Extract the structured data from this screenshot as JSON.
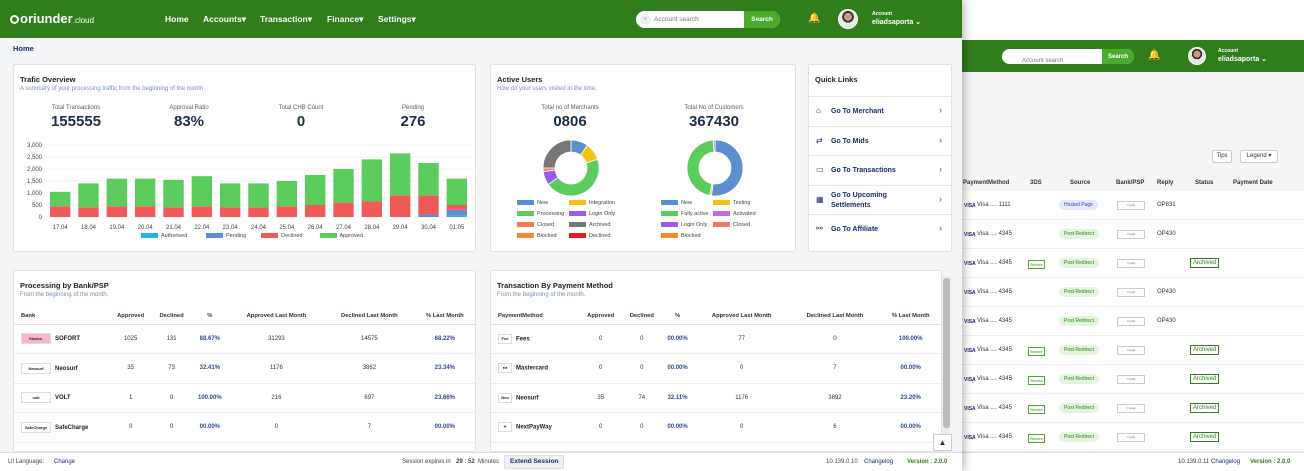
{
  "nav": {
    "logo": "oriunder",
    "logo_suffix": ".cloud",
    "menu": [
      "Home",
      "Accounts▾",
      "Transaction▾",
      "Finance▾",
      "Settings▾"
    ],
    "search_placeholder": "Account search",
    "search_button": "Search",
    "account_label": "Account",
    "username": "eliadsaporta ⌄"
  },
  "breadcrumb": "Home",
  "traffic": {
    "title": "Trafic Overview",
    "subtitle": "A summary of your processing traffic from the beginning of the month",
    "stats": [
      {
        "label": "Total Transactions",
        "value": "155555"
      },
      {
        "label": "Approval Ratio",
        "value": "83%"
      },
      {
        "label": "Total CHB Count",
        "value": "0"
      },
      {
        "label": "Pending",
        "value": "276"
      }
    ]
  },
  "chart_data": {
    "type": "bar",
    "stacked": true,
    "categories": [
      "17.04",
      "18.04",
      "19.04",
      "20.04",
      "21.04",
      "22.04",
      "23.04",
      "24.04",
      "25.04",
      "26.04",
      "27.04",
      "28.04",
      "29.04",
      "30.04",
      "01.05"
    ],
    "series": [
      {
        "name": "Authorised",
        "color": "#29b6d6",
        "values": [
          0,
          0,
          0,
          0,
          0,
          0,
          0,
          0,
          0,
          0,
          0,
          0,
          0,
          0,
          50
        ]
      },
      {
        "name": "Pending",
        "color": "#5b8fcf",
        "values": [
          0,
          0,
          0,
          0,
          0,
          0,
          0,
          0,
          0,
          0,
          0,
          0,
          0,
          100,
          250
        ]
      },
      {
        "name": "Declined",
        "color": "#f25a5a",
        "values": [
          450,
          400,
          450,
          450,
          400,
          450,
          400,
          400,
          450,
          500,
          600,
          650,
          900,
          800,
          200
        ]
      },
      {
        "name": "Approved",
        "color": "#5ccc5c",
        "values": [
          600,
          1000,
          1150,
          1150,
          1150,
          1250,
          1000,
          1000,
          1050,
          1250,
          1400,
          1750,
          1750,
          1350,
          1100
        ]
      }
    ],
    "ylim": [
      0,
      3000
    ],
    "yticks": [
      "3,000",
      "2,500",
      "2,000",
      "1,500",
      "1,000",
      "500",
      "0"
    ]
  },
  "active_users": {
    "title": "Active Users",
    "subtitle": "How do your users visited in the time.",
    "merchants_label": "Total no of Merchants",
    "merchants_value": "0806",
    "customers_label": "Total No of Customers",
    "customers_value": "367430",
    "merchant_donut": [
      {
        "name": "New",
        "color": "#5b8fcf",
        "value": 10
      },
      {
        "name": "Integration",
        "color": "#f2c316",
        "value": 10
      },
      {
        "name": "Processing",
        "color": "#5ccc5c",
        "value": 45
      },
      {
        "name": "Login Only",
        "color": "#9a5ce6",
        "value": 8
      },
      {
        "name": "Closed",
        "color": "#f07a5a",
        "value": 2
      },
      {
        "name": "Archived",
        "color": "#777777",
        "value": 25
      },
      {
        "name": "Blocked",
        "color": "#f28c2a",
        "value": 0
      },
      {
        "name": "Declined",
        "color": "#e02020",
        "value": 0
      }
    ],
    "customer_donut": [
      {
        "name": "New",
        "color": "#5b8fcf",
        "value": 52
      },
      {
        "name": "Testing",
        "color": "#f2c316",
        "value": 1
      },
      {
        "name": "Fully active",
        "color": "#5ccc5c",
        "value": 46
      },
      {
        "name": "Activated",
        "color": "#c26ae6",
        "value": 1
      },
      {
        "name": "Login Only",
        "color": "#9a5ce6",
        "value": 0
      },
      {
        "name": "Closed",
        "color": "#f07a5a",
        "value": 0
      },
      {
        "name": "Blocked",
        "color": "#f28c2a",
        "value": 0
      }
    ]
  },
  "quick_links": {
    "title": "Quick Links",
    "items": [
      {
        "label": "Go To Merchant",
        "icon": "⌂"
      },
      {
        "label": "Go To Mids",
        "icon": "⇄"
      },
      {
        "label": "Go To Transactions",
        "icon": "▭"
      },
      {
        "label": "Go To Upcoming Settlements",
        "icon": "▦"
      },
      {
        "label": "Go To Affiliate",
        "icon": "⚯"
      }
    ]
  },
  "bank": {
    "title": "Processing by Bank/PSP",
    "subtitle": "From the beginning of the month.",
    "columns": [
      "Bank",
      "Approved",
      "Declined",
      "%",
      "Approved Last Month",
      "Declined Last Month",
      "% Last Month"
    ],
    "rows": [
      {
        "logo": "Klarna.",
        "logo_bg": "#f7b6c9",
        "name": "SOFORT",
        "approved": "1025",
        "declined": "131",
        "pct": "88.67%",
        "alm": "31293",
        "dlm": "14575",
        "plm": "68.22%"
      },
      {
        "logo": "Neosurf",
        "logo_bg": "#ffffff",
        "name": "Neosurf",
        "approved": "35",
        "declined": "73",
        "pct": "32.41%",
        "alm": "1176",
        "dlm": "3862",
        "plm": "23.34%"
      },
      {
        "logo": "volt",
        "logo_bg": "#ffffff",
        "name": "VOLT",
        "approved": "1",
        "declined": "0",
        "pct": "100.00%",
        "alm": "216",
        "dlm": "697",
        "plm": "23.66%"
      },
      {
        "logo": "SafeCharge",
        "logo_bg": "#ffffff",
        "name": "SafeCharge",
        "approved": "0",
        "declined": "0",
        "pct": "00.00%",
        "alm": "0",
        "dlm": "7",
        "plm": "00.00%"
      }
    ]
  },
  "payment": {
    "title": "Transaction By Payment Method",
    "subtitle": "From the beginning of the month.",
    "columns": [
      "PaymentMethod",
      "Approved",
      "Declined",
      "%",
      "Approved Last Month",
      "Declined Last Month",
      "% Last Month"
    ],
    "rows": [
      {
        "logo": "Fee",
        "name": "Fees",
        "approved": "0",
        "declined": "0",
        "pct": "00.00%",
        "alm": "77",
        "dlm": "0",
        "plm": "100.00%"
      },
      {
        "logo": "●●",
        "name": "Mastercard",
        "approved": "0",
        "declined": "0",
        "pct": "00.00%",
        "alm": "0",
        "dlm": "7",
        "plm": "00.00%"
      },
      {
        "logo": "Neo",
        "name": "Neosurf",
        "approved": "35",
        "declined": "74",
        "pct": "32.11%",
        "alm": "1176",
        "dlm": "3892",
        "plm": "23.20%"
      },
      {
        "logo": "✦",
        "name": "NextPayWay",
        "approved": "0",
        "declined": "0",
        "pct": "00.00%",
        "alm": "0",
        "dlm": "6",
        "plm": "00.00%"
      }
    ]
  },
  "footer": {
    "ui_language": "UI Language:",
    "change": "Change",
    "session_prefix": "Session expires in",
    "session_time": "29 : 52",
    "session_suffix": "Minutes",
    "extend": "Extend Session",
    "ip": "10.139.0.10",
    "changelog": "Changelog",
    "version": "Version : 2.0.0"
  },
  "bg": {
    "search_placeholder": "Account search",
    "search_button": "Search",
    "account_label": "Account",
    "username": "eliadsaporta ⌄",
    "tips": "Tips",
    "legend": "Legend ▾",
    "columns": [
      "PaymentMethod",
      "3DS",
      "Source",
      "Bank/PSP",
      "Reply",
      "Status",
      "Payment Date"
    ],
    "rows": [
      {
        "card": "Visa .... 1111",
        "secure": "",
        "source": "Hosted Page",
        "src_type": "b",
        "reply": "OP831",
        "status": ""
      },
      {
        "card": "Visa .... 4345",
        "secure": "",
        "source": "Post Redirect",
        "src_type": "g",
        "reply": "OP430",
        "status": ""
      },
      {
        "card": "Visa .... 4345",
        "secure": "Secure",
        "source": "Post Redirect",
        "src_type": "g",
        "reply": "",
        "status": "Archived"
      },
      {
        "card": "Visa .... 4345",
        "secure": "",
        "source": "Post Redirect",
        "src_type": "g",
        "reply": "OP430",
        "status": ""
      },
      {
        "card": "Visa .... 4345",
        "secure": "",
        "source": "Post Redirect",
        "src_type": "g",
        "reply": "OP430",
        "status": ""
      },
      {
        "card": "Visa .... 4345",
        "secure": "Secure",
        "source": "Post Redirect",
        "src_type": "g",
        "reply": "",
        "status": "Archived"
      },
      {
        "card": "Visa .... 4345",
        "secure": "Secure",
        "source": "Post Redirect",
        "src_type": "g",
        "reply": "",
        "status": "Archived"
      },
      {
        "card": "Visa .... 4345",
        "secure": "Secure",
        "source": "Post Redirect",
        "src_type": "g",
        "reply": "",
        "status": "Archived"
      },
      {
        "card": "Visa .... 4345",
        "secure": "Secure",
        "source": "Post Redirect",
        "src_type": "g",
        "reply": "",
        "status": "Archived"
      }
    ],
    "footer_ip": "10.139.0.11",
    "footer_changelog": "Changelog",
    "footer_version": "Version : 2.0.0"
  }
}
